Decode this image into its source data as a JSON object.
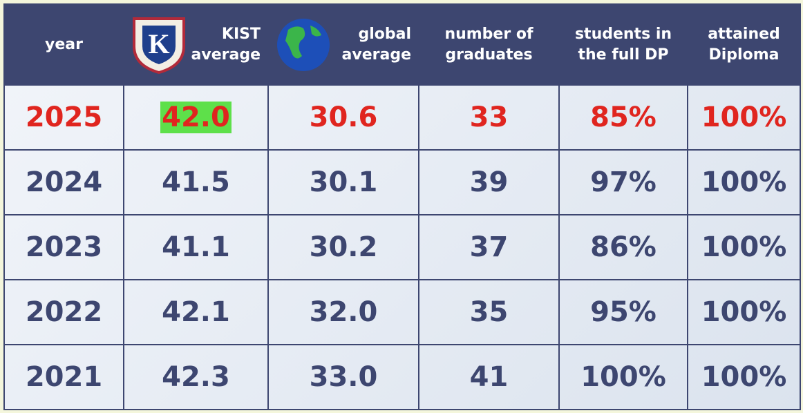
{
  "logo": {
    "letter": "K"
  },
  "table": {
    "header": [
      [
        "year"
      ],
      [
        "KIST",
        "average"
      ],
      [
        "global",
        "average"
      ],
      [
        "number of",
        "graduates"
      ],
      [
        "students in",
        "the full DP"
      ],
      [
        "attained",
        "Diploma"
      ]
    ],
    "rows": [
      [
        "2025",
        "42.0",
        "30.6",
        "33",
        "85%",
        "100%"
      ],
      [
        "2024",
        "41.5",
        "30.1",
        "39",
        "97%",
        "100%"
      ],
      [
        "2023",
        "41.1",
        "30.2",
        "37",
        "86%",
        "100%"
      ],
      [
        "2022",
        "42.1",
        "32.0",
        "35",
        "95%",
        "100%"
      ],
      [
        "2021",
        "42.3",
        "33.0",
        "41",
        "100%",
        "100%"
      ]
    ]
  }
}
